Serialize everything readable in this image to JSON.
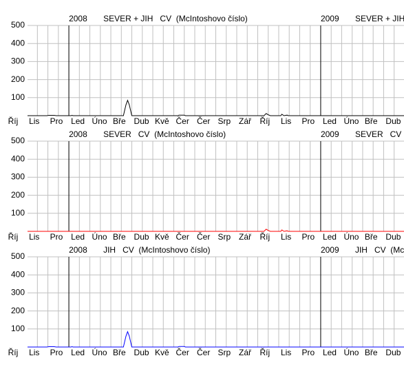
{
  "chart_data": [
    {
      "type": "line",
      "title": "SEVER + JIH   CV  (McIntoshovo číslo)",
      "annotations": [
        {
          "value": 3,
          "label": "2008"
        },
        {
          "value": 15,
          "label": "2009"
        }
      ],
      "xlim": [
        1.03,
        18.97
      ],
      "ylim": [
        0,
        500
      ],
      "yticks": [
        100,
        200,
        300,
        400,
        500
      ],
      "grid": true,
      "xticks": [
        {
          "value": 0,
          "label": "Říj"
        },
        {
          "value": 1,
          "label": "Lis"
        },
        {
          "value": 2,
          "label": "Pro"
        },
        {
          "value": 3,
          "label": "Led"
        },
        {
          "value": 4,
          "label": "Úno"
        },
        {
          "value": 5,
          "label": "Bře"
        },
        {
          "value": 6,
          "label": "Dub"
        },
        {
          "value": 7,
          "label": "Kvě"
        },
        {
          "value": 8,
          "label": "Čer"
        },
        {
          "value": 9,
          "label": "Čer"
        },
        {
          "value": 10,
          "label": "Srp"
        },
        {
          "value": 11,
          "label": "Zář"
        },
        {
          "value": 12,
          "label": "Říj"
        },
        {
          "value": 13,
          "label": "Lis"
        },
        {
          "value": 14,
          "label": "Pro"
        },
        {
          "value": 15,
          "label": "Led"
        },
        {
          "value": 16,
          "label": "Úno"
        },
        {
          "value": 17,
          "label": "Bře"
        },
        {
          "value": 18,
          "label": "Dub"
        }
      ],
      "series": [
        {
          "color": "#000000",
          "x": [
            1.03,
            1.95,
            2.05,
            2.3,
            2.4,
            3.1,
            3.15,
            3.2,
            5.6,
            5.72,
            5.8,
            5.88,
            6.0,
            8.2,
            8.25,
            8.5,
            8.55,
            12.3,
            12.4,
            12.5,
            12.6,
            13.1,
            13.15,
            13.25,
            13.4,
            13.45,
            18.97
          ],
          "values": [
            0,
            0,
            2,
            2,
            0,
            0,
            2,
            0,
            0,
            60,
            85,
            60,
            0,
            0,
            3,
            3,
            0,
            0,
            12,
            5,
            0,
            0,
            8,
            0,
            3,
            0,
            0
          ]
        }
      ]
    },
    {
      "type": "line",
      "title": "SEVER   CV  (McIntoshovo číslo)",
      "annotations": [
        {
          "value": 3,
          "label": "2008"
        },
        {
          "value": 15,
          "label": "2009"
        }
      ],
      "xlim": [
        1.03,
        18.97
      ],
      "ylim": [
        0,
        500
      ],
      "yticks": [
        100,
        200,
        300,
        400,
        500
      ],
      "grid": true,
      "xticks": [
        {
          "value": 0,
          "label": "Říj"
        },
        {
          "value": 1,
          "label": "Lis"
        },
        {
          "value": 2,
          "label": "Pro"
        },
        {
          "value": 3,
          "label": "Led"
        },
        {
          "value": 4,
          "label": "Úno"
        },
        {
          "value": 5,
          "label": "Bře"
        },
        {
          "value": 6,
          "label": "Dub"
        },
        {
          "value": 7,
          "label": "Kvě"
        },
        {
          "value": 8,
          "label": "Čer"
        },
        {
          "value": 9,
          "label": "Čer"
        },
        {
          "value": 10,
          "label": "Srp"
        },
        {
          "value": 11,
          "label": "Zář"
        },
        {
          "value": 12,
          "label": "Říj"
        },
        {
          "value": 13,
          "label": "Lis"
        },
        {
          "value": 14,
          "label": "Pro"
        },
        {
          "value": 15,
          "label": "Led"
        },
        {
          "value": 16,
          "label": "Úno"
        },
        {
          "value": 17,
          "label": "Bře"
        },
        {
          "value": 18,
          "label": "Dub"
        }
      ],
      "series": [
        {
          "color": "#ff0000",
          "x": [
            1.03,
            12.3,
            12.4,
            12.5,
            12.6,
            13.1,
            13.15,
            13.25,
            13.4,
            13.45,
            18.97
          ],
          "values": [
            0,
            0,
            12,
            5,
            0,
            0,
            8,
            0,
            3,
            0,
            0
          ]
        }
      ]
    },
    {
      "type": "line",
      "title": "JIH   CV  (McIntoshovo číslo)",
      "annotations": [
        {
          "value": 3,
          "label": "2008"
        },
        {
          "value": 15,
          "label": "2009"
        }
      ],
      "xlim": [
        1.03,
        18.97
      ],
      "ylim": [
        0,
        500
      ],
      "yticks": [
        100,
        200,
        300,
        400,
        500
      ],
      "grid": true,
      "xticks": [
        {
          "value": 0,
          "label": "Říj"
        },
        {
          "value": 1,
          "label": "Lis"
        },
        {
          "value": 2,
          "label": "Pro"
        },
        {
          "value": 3,
          "label": "Led"
        },
        {
          "value": 4,
          "label": "Úno"
        },
        {
          "value": 5,
          "label": "Bře"
        },
        {
          "value": 6,
          "label": "Dub"
        },
        {
          "value": 7,
          "label": "Kvě"
        },
        {
          "value": 8,
          "label": "Čer"
        },
        {
          "value": 9,
          "label": "Čer"
        },
        {
          "value": 10,
          "label": "Srp"
        },
        {
          "value": 11,
          "label": "Zář"
        },
        {
          "value": 12,
          "label": "Říj"
        },
        {
          "value": 13,
          "label": "Lis"
        },
        {
          "value": 14,
          "label": "Pro"
        },
        {
          "value": 15,
          "label": "Led"
        },
        {
          "value": 16,
          "label": "Úno"
        },
        {
          "value": 17,
          "label": "Bře"
        },
        {
          "value": 18,
          "label": "Dub"
        }
      ],
      "series": [
        {
          "color": "#0000ff",
          "x": [
            1.03,
            1.95,
            2.05,
            2.3,
            2.4,
            3.1,
            3.15,
            3.2,
            5.6,
            5.72,
            5.8,
            5.88,
            6.0,
            8.2,
            8.25,
            8.5,
            8.55,
            18.97
          ],
          "values": [
            0,
            0,
            2,
            2,
            0,
            0,
            2,
            0,
            0,
            60,
            85,
            60,
            0,
            0,
            3,
            3,
            0,
            0
          ]
        }
      ]
    }
  ]
}
